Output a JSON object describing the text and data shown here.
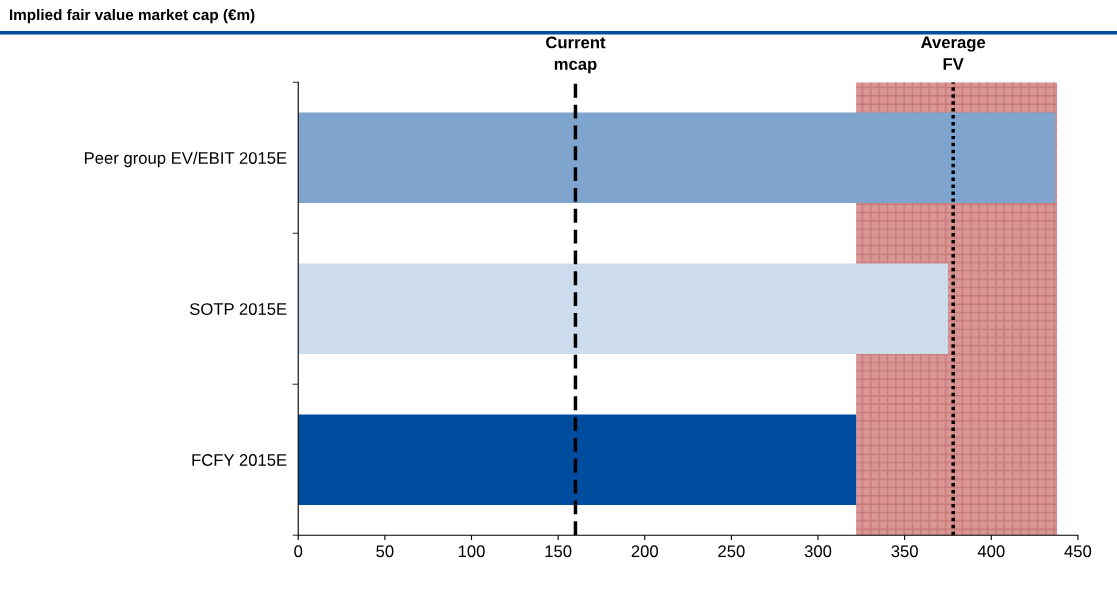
{
  "chart_data": {
    "type": "bar",
    "orientation": "horizontal",
    "title": "Implied fair value market cap (€m)",
    "categories": [
      "Peer group EV/EBIT 2015E",
      "SOTP 2015E",
      "FCFY 2015E"
    ],
    "values": [
      437,
      375,
      322
    ],
    "colors": [
      "#7fa5cf",
      "#cddcec",
      "#004c9f"
    ],
    "xlim": [
      0,
      450
    ],
    "xticks": [
      0,
      50,
      100,
      150,
      200,
      250,
      300,
      350,
      400,
      450
    ],
    "grid": false,
    "legend": false,
    "ref_lines": [
      {
        "axis": "x",
        "value": 160,
        "label": "Current\nmcap",
        "line_style": "dashed",
        "color": "#000000"
      },
      {
        "axis": "x",
        "value": 378,
        "label": "Average\nFV",
        "line_style": "dotted",
        "color": "#000000"
      }
    ],
    "bands": [
      {
        "axis": "x",
        "from": 322,
        "to": 438,
        "label": null,
        "color": "#c0504d"
      }
    ]
  }
}
